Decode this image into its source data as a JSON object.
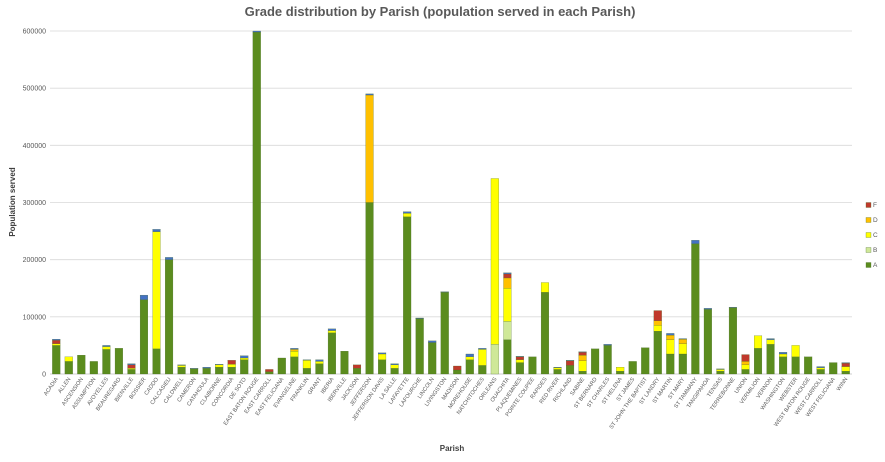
{
  "chart_data": {
    "type": "bar",
    "stacked": true,
    "title": "Grade distribution by Parish (population served in each Parish)",
    "xlabel": "Parish",
    "ylabel": "Population served",
    "ylim": [
      0,
      600000
    ],
    "yticks": [
      0,
      100000,
      200000,
      300000,
      400000,
      500000,
      600000
    ],
    "ytick_labels": [
      "0",
      "100000",
      "200000",
      "300000",
      "400000",
      "500000",
      "600000"
    ],
    "grid": true,
    "legend_position": "right",
    "categories": [
      "ACADIA",
      "ALLEN",
      "ASCENSION",
      "ASSUMPTION",
      "AVOYELLES",
      "BEAUREGARD",
      "BIENVILLE",
      "BOSSIER",
      "CADDO",
      "CALCASIEU",
      "CALDWELL",
      "CAMERON",
      "CATAHOULA",
      "CLAIBORNE",
      "CONCORDIA",
      "DE SOTO",
      "EAST BATON ROUGE",
      "EAST CARROLL",
      "EAST FELICIANA",
      "EVANGELINE",
      "FRANKLIN",
      "GRANT",
      "IBERIA",
      "IBERVILLE",
      "JACKSON",
      "JEFFERSON",
      "JEFFERSON DAVIS",
      "LA SALLE",
      "LAFAYETTE",
      "LAFOURCHE",
      "LINCOLN",
      "LIVINGSTON",
      "MADISON",
      "MOREHOUSE",
      "NATCHITOCHES",
      "ORLEANS",
      "OUACHITA",
      "PLAQUEMINES",
      "POINTE COUPEE",
      "RAPIDES",
      "RED RIVER",
      "RICHLAND",
      "SABINE",
      "ST BERNARD",
      "ST CHARLES",
      "ST HELENA",
      "ST JAMES",
      "ST JOHN THE BAPTIST",
      "ST LANDRY",
      "ST MARTIN",
      "ST MARY",
      "ST TAMMANY",
      "TANGIPAHOA",
      "TENSAS",
      "TERREBONNE",
      "UNION",
      "VERMILION",
      "VERNON",
      "WASHINGTON",
      "WEBSTER",
      "WEST BATON ROUGE",
      "WEST CARROLL",
      "WEST FELICIANA",
      "WINN"
    ],
    "series": [
      {
        "name": "A",
        "color": "#5b8c1e",
        "values": [
          50000,
          22000,
          33000,
          22000,
          43000,
          45000,
          8000,
          130000,
          44000,
          200000,
          12000,
          9000,
          10000,
          12000,
          12000,
          25000,
          598000,
          4000,
          28000,
          30000,
          10000,
          18000,
          72000,
          40000,
          10000,
          300000,
          25000,
          10000,
          275000,
          97000,
          55000,
          143000,
          7000,
          25000,
          15000,
          0,
          60000,
          20000,
          30000,
          143000,
          8000,
          15000,
          5000,
          44000,
          50000,
          5000,
          22000,
          46000,
          75000,
          35000,
          35000,
          228000,
          113000,
          5000,
          116000,
          8000,
          45000,
          52000,
          30000,
          30000,
          30000,
          8000,
          20000,
          5000
        ]
      },
      {
        "name": "B",
        "color": "#cfe898",
        "values": [
          0,
          0,
          0,
          0,
          0,
          0,
          0,
          0,
          0,
          0,
          0,
          0,
          0,
          0,
          0,
          0,
          0,
          0,
          0,
          0,
          0,
          0,
          0,
          0,
          0,
          0,
          0,
          0,
          0,
          0,
          0,
          0,
          0,
          0,
          0,
          52000,
          32000,
          0,
          0,
          0,
          0,
          0,
          0,
          0,
          0,
          0,
          0,
          0,
          0,
          0,
          0,
          0,
          0,
          0,
          0,
          0,
          0,
          0,
          0,
          0,
          0,
          0,
          0,
          0
        ]
      },
      {
        "name": "C",
        "color": "#ffff00",
        "values": [
          3000,
          8000,
          0,
          0,
          5000,
          0,
          2000,
          0,
          205000,
          0,
          3000,
          0,
          0,
          4000,
          5000,
          3000,
          0,
          0,
          0,
          10000,
          14000,
          4000,
          4000,
          0,
          0,
          0,
          10000,
          6000,
          6000,
          0,
          0,
          0,
          0,
          5000,
          28000,
          290000,
          58000,
          5000,
          0,
          17000,
          3000,
          0,
          18000,
          0,
          0,
          7000,
          0,
          0,
          10000,
          25000,
          18000,
          0,
          0,
          3000,
          0,
          8000,
          22000,
          8000,
          5000,
          20000,
          0,
          3000,
          0,
          8000
        ]
      },
      {
        "name": "D",
        "color": "#ffc000",
        "values": [
          0,
          0,
          0,
          0,
          0,
          0,
          0,
          0,
          0,
          0,
          0,
          0,
          0,
          0,
          0,
          0,
          0,
          0,
          0,
          3000,
          0,
          0,
          0,
          0,
          0,
          188000,
          0,
          0,
          0,
          0,
          0,
          0,
          0,
          0,
          0,
          0,
          18000,
          0,
          0,
          0,
          0,
          0,
          10000,
          0,
          0,
          0,
          0,
          0,
          8000,
          8000,
          8000,
          0,
          0,
          0,
          0,
          6000,
          0,
          0,
          0,
          0,
          0,
          0,
          0,
          0
        ]
      },
      {
        "name": "F",
        "color": "#c0392b",
        "values": [
          6000,
          0,
          0,
          0,
          0,
          0,
          6000,
          0,
          0,
          0,
          0,
          0,
          0,
          0,
          7000,
          0,
          0,
          4000,
          0,
          0,
          0,
          0,
          0,
          0,
          6000,
          0,
          0,
          0,
          0,
          0,
          0,
          0,
          7000,
          0,
          0,
          0,
          7000,
          5000,
          0,
          0,
          0,
          8000,
          5000,
          0,
          0,
          0,
          0,
          0,
          18000,
          0,
          0,
          0,
          0,
          0,
          0,
          12000,
          0,
          0,
          0,
          0,
          0,
          0,
          0,
          6000
        ]
      },
      {
        "name": "",
        "color": "#4472c4",
        "values": [
          2000,
          0,
          0,
          0,
          2000,
          0,
          2000,
          8000,
          4000,
          4000,
          1000,
          1000,
          2000,
          1000,
          0,
          4000,
          2000,
          0,
          0,
          2000,
          1000,
          3000,
          3000,
          0,
          0,
          2000,
          2000,
          2000,
          3000,
          1000,
          3000,
          1000,
          0,
          5000,
          2000,
          0,
          2000,
          1000,
          0,
          0,
          1000,
          1000,
          1000,
          0,
          2000,
          0,
          0,
          0,
          0,
          3000,
          1000,
          6000,
          2000,
          1000,
          1000,
          0,
          0,
          2000,
          3000,
          0,
          0,
          2000,
          0,
          1000
        ]
      }
    ]
  }
}
